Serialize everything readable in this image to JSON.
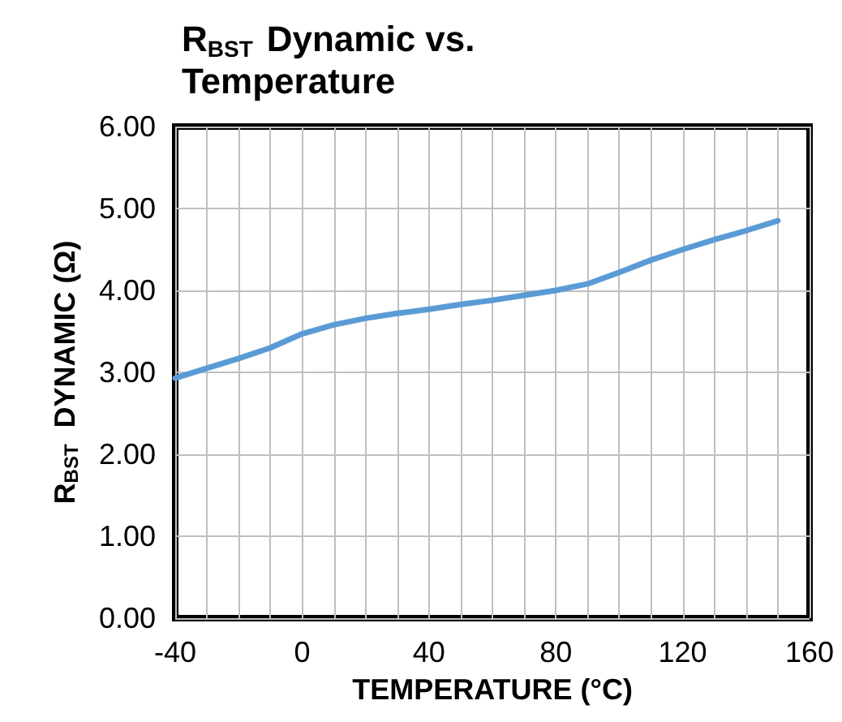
{
  "chart_data": {
    "type": "line",
    "title": "R$_{BST}$ Dynamic vs. Temperature",
    "xlabel": "TEMPERATURE (°C)",
    "ylabel": "R$_{BST}$ DYNAMIC (Ω)",
    "x": [
      -40,
      -30,
      -20,
      -10,
      0,
      10,
      20,
      30,
      40,
      50,
      60,
      70,
      80,
      90,
      100,
      110,
      120,
      130,
      140,
      150
    ],
    "series": [
      {
        "color": "#5b9bd5",
        "values": [
          2.93,
          3.05,
          3.17,
          3.3,
          3.47,
          3.58,
          3.66,
          3.72,
          3.77,
          3.83,
          3.88,
          3.94,
          4.0,
          4.08,
          4.22,
          4.37,
          4.5,
          4.62,
          4.73,
          4.85
        ]
      }
    ],
    "xlim": [
      -40,
      160
    ],
    "xticks": [
      -40,
      {
        "value": -30,
        "label": null
      },
      {
        "value": -20,
        "label": null
      },
      {
        "value": -10,
        "label": null
      },
      0,
      {
        "value": 10,
        "label": null
      },
      {
        "value": 20,
        "label": null
      },
      {
        "value": 30,
        "label": null
      },
      40,
      {
        "value": 50,
        "label": null
      },
      {
        "value": 60,
        "label": null
      },
      {
        "value": 70,
        "label": null
      },
      80,
      {
        "value": 90,
        "label": null
      },
      {
        "value": 100,
        "label": null
      },
      {
        "value": 110,
        "label": null
      },
      120,
      {
        "value": 130,
        "label": null
      },
      {
        "value": 140,
        "label": null
      },
      {
        "value": 150,
        "label": null
      },
      160
    ],
    "ylim": [
      0,
      6
    ],
    "yticks": [
      {
        "value": 0,
        "label": "0.00"
      },
      {
        "value": 1,
        "label": "1.00"
      },
      {
        "value": 2,
        "label": "2.00"
      },
      {
        "value": 3,
        "label": "3.00"
      },
      {
        "value": 4,
        "label": "4.00"
      },
      {
        "value": 5,
        "label": "5.00"
      },
      {
        "value": 6,
        "label": "6.00"
      }
    ],
    "grid": true,
    "marker": "none",
    "line_style": "solid"
  }
}
